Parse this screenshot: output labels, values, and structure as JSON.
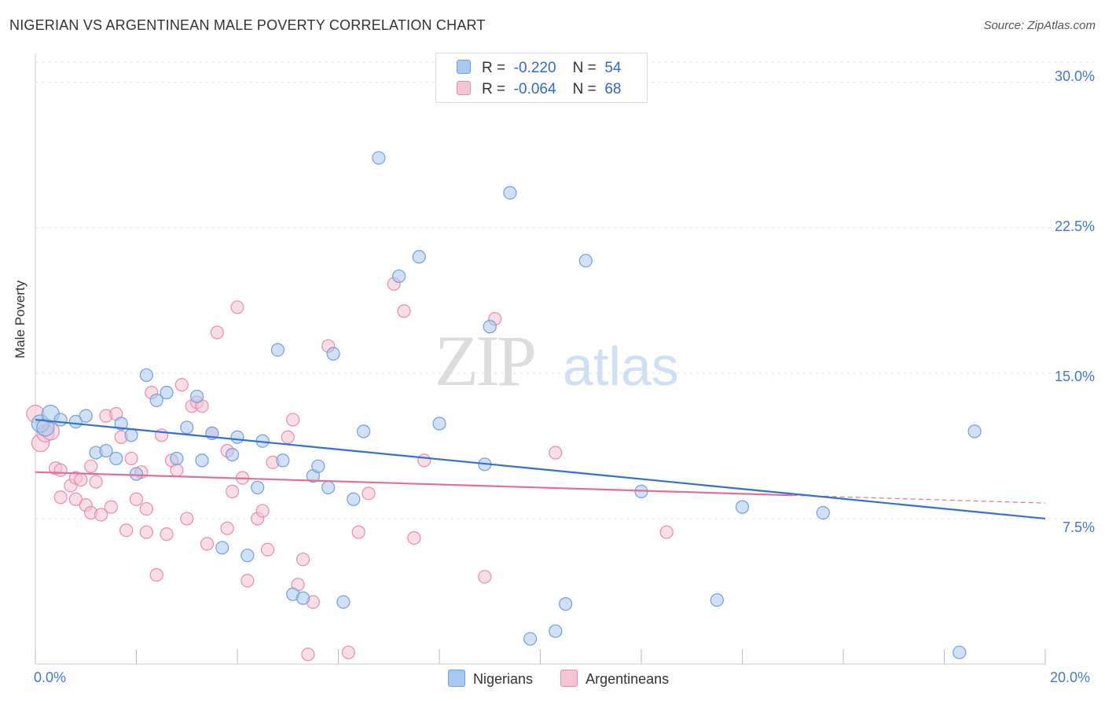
{
  "header": {
    "title": "NIGERIAN VS ARGENTINEAN MALE POVERTY CORRELATION CHART",
    "source": "Source: ZipAtlas.com"
  },
  "watermark": {
    "zip": "ZIP",
    "atlas": "atlas"
  },
  "stats_legend": {
    "nigerians": {
      "r_label": "R =",
      "r_value": "-0.220",
      "n_label": "N =",
      "n_value": "54"
    },
    "argentineans": {
      "r_label": "R =",
      "r_value": "-0.064",
      "n_label": "N =",
      "n_value": "68"
    }
  },
  "colors": {
    "nigerians_fill": "#a9c8f0",
    "nigerians_stroke": "#6f9fdc",
    "nigerians_line": "#3370d0",
    "argentineans_fill": "#f6c3d3",
    "argentineans_stroke": "#e88cab",
    "argentineans_line": "#e07098",
    "tick_text": "#4477cc"
  },
  "chart_data": {
    "type": "scatter",
    "title": "NIGERIAN VS ARGENTINEAN MALE POVERTY CORRELATION CHART",
    "xlabel": "",
    "ylabel": "Male Poverty",
    "xlim": [
      0,
      20
    ],
    "ylim": [
      0,
      31
    ],
    "x_tick_labels": [
      {
        "value": 0,
        "label": "0.0%"
      },
      {
        "value": 20,
        "label": "20.0%"
      }
    ],
    "y_tick_labels": [
      {
        "value": 7.5,
        "label": "7.5%"
      },
      {
        "value": 15,
        "label": "15.0%"
      },
      {
        "value": 22.5,
        "label": "22.5%"
      },
      {
        "value": 30,
        "label": "30.0%"
      }
    ],
    "grid": true,
    "legend_position": "bottom-center",
    "series": [
      {
        "name": "Nigerians",
        "r": -0.22,
        "n": 54,
        "trend": {
          "x": [
            0,
            20
          ],
          "y": [
            12.6,
            7.5
          ]
        },
        "points": [
          [
            0.1,
            12.4
          ],
          [
            0.2,
            12.2
          ],
          [
            0.3,
            12.9
          ],
          [
            0.5,
            12.6
          ],
          [
            0.8,
            12.5
          ],
          [
            1.0,
            12.8
          ],
          [
            1.2,
            10.9
          ],
          [
            1.4,
            11.0
          ],
          [
            1.6,
            10.6
          ],
          [
            1.7,
            12.4
          ],
          [
            1.9,
            11.8
          ],
          [
            2.0,
            9.8
          ],
          [
            2.2,
            14.9
          ],
          [
            2.4,
            13.6
          ],
          [
            2.6,
            14.0
          ],
          [
            2.8,
            10.6
          ],
          [
            3.0,
            12.2
          ],
          [
            3.2,
            13.8
          ],
          [
            3.3,
            10.5
          ],
          [
            3.5,
            11.9
          ],
          [
            3.7,
            6.0
          ],
          [
            3.9,
            10.8
          ],
          [
            4.0,
            11.7
          ],
          [
            4.2,
            5.6
          ],
          [
            4.4,
            9.1
          ],
          [
            4.5,
            11.5
          ],
          [
            4.8,
            16.2
          ],
          [
            4.9,
            10.5
          ],
          [
            5.1,
            3.6
          ],
          [
            5.3,
            3.4
          ],
          [
            5.5,
            9.7
          ],
          [
            5.6,
            10.2
          ],
          [
            5.8,
            9.1
          ],
          [
            5.9,
            16.0
          ],
          [
            6.1,
            3.2
          ],
          [
            6.3,
            8.5
          ],
          [
            6.5,
            12.0
          ],
          [
            6.8,
            26.1
          ],
          [
            7.2,
            20.0
          ],
          [
            7.6,
            21.0
          ],
          [
            8.0,
            12.4
          ],
          [
            8.9,
            10.3
          ],
          [
            9.0,
            17.4
          ],
          [
            9.4,
            24.3
          ],
          [
            9.8,
            1.3
          ],
          [
            10.3,
            1.7
          ],
          [
            10.5,
            3.1
          ],
          [
            10.9,
            20.8
          ],
          [
            12.0,
            8.9
          ],
          [
            13.5,
            3.3
          ],
          [
            14.0,
            8.1
          ],
          [
            15.6,
            7.8
          ],
          [
            18.3,
            0.6
          ],
          [
            18.6,
            12.0
          ]
        ]
      },
      {
        "name": "Argentineans",
        "r": -0.064,
        "n": 68,
        "trend": {
          "x": [
            0,
            15
          ],
          "y": [
            9.9,
            8.7
          ]
        },
        "trend_ext": {
          "x": [
            15,
            20
          ],
          "y": [
            8.7,
            8.3
          ]
        },
        "points": [
          [
            0.0,
            12.9
          ],
          [
            0.1,
            11.4
          ],
          [
            0.2,
            11.9
          ],
          [
            0.3,
            12.0
          ],
          [
            0.4,
            10.1
          ],
          [
            0.5,
            10.0
          ],
          [
            0.5,
            8.6
          ],
          [
            0.7,
            9.2
          ],
          [
            0.8,
            8.5
          ],
          [
            0.8,
            9.6
          ],
          [
            0.9,
            9.5
          ],
          [
            1.0,
            8.2
          ],
          [
            1.1,
            10.2
          ],
          [
            1.1,
            7.8
          ],
          [
            1.2,
            9.4
          ],
          [
            1.3,
            7.7
          ],
          [
            1.4,
            12.8
          ],
          [
            1.5,
            8.1
          ],
          [
            1.6,
            12.9
          ],
          [
            1.7,
            11.7
          ],
          [
            1.8,
            6.9
          ],
          [
            1.9,
            10.6
          ],
          [
            2.0,
            8.5
          ],
          [
            2.1,
            9.9
          ],
          [
            2.2,
            8.0
          ],
          [
            2.2,
            6.8
          ],
          [
            2.3,
            14.0
          ],
          [
            2.4,
            4.6
          ],
          [
            2.5,
            11.8
          ],
          [
            2.6,
            6.7
          ],
          [
            2.7,
            10.5
          ],
          [
            2.8,
            10.0
          ],
          [
            2.9,
            14.4
          ],
          [
            3.0,
            7.5
          ],
          [
            3.1,
            13.3
          ],
          [
            3.2,
            13.5
          ],
          [
            3.3,
            13.3
          ],
          [
            3.4,
            6.2
          ],
          [
            3.5,
            11.9
          ],
          [
            3.6,
            17.1
          ],
          [
            3.8,
            11.0
          ],
          [
            3.8,
            7.0
          ],
          [
            3.9,
            8.9
          ],
          [
            4.0,
            18.4
          ],
          [
            4.1,
            9.6
          ],
          [
            4.2,
            4.3
          ],
          [
            4.4,
            7.5
          ],
          [
            4.5,
            7.9
          ],
          [
            4.6,
            5.9
          ],
          [
            4.7,
            10.4
          ],
          [
            5.0,
            11.7
          ],
          [
            5.1,
            12.6
          ],
          [
            5.2,
            4.1
          ],
          [
            5.3,
            5.4
          ],
          [
            5.4,
            0.5
          ],
          [
            5.5,
            3.2
          ],
          [
            5.8,
            16.4
          ],
          [
            6.2,
            0.6
          ],
          [
            6.4,
            6.8
          ],
          [
            6.6,
            8.8
          ],
          [
            7.1,
            19.6
          ],
          [
            7.3,
            18.2
          ],
          [
            7.5,
            6.5
          ],
          [
            7.7,
            10.5
          ],
          [
            8.9,
            4.5
          ],
          [
            9.1,
            17.8
          ],
          [
            10.3,
            10.9
          ],
          [
            12.5,
            6.8
          ]
        ]
      }
    ]
  }
}
